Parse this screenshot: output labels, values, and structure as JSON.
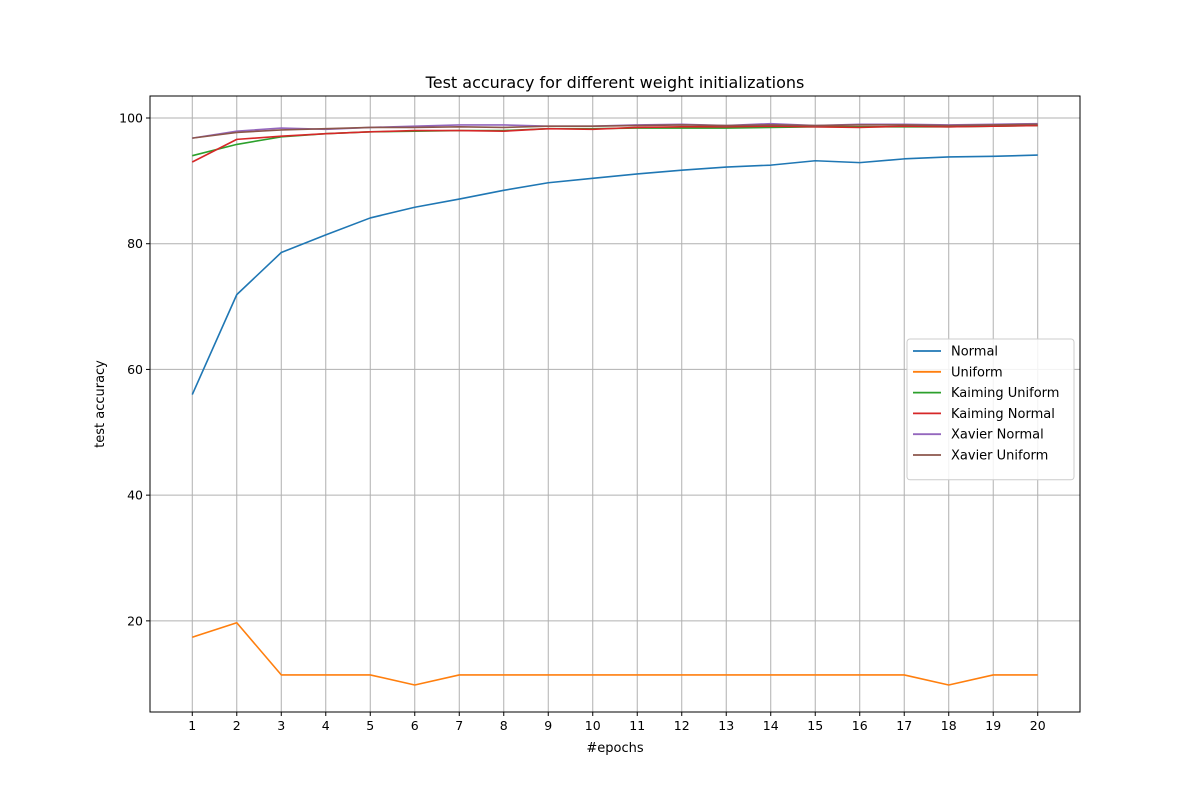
{
  "chart_data": {
    "type": "line",
    "title": "Test accuracy for different weight initializations",
    "xlabel": "#epochs",
    "ylabel": "test accuracy",
    "x": [
      1,
      2,
      3,
      4,
      5,
      6,
      7,
      8,
      9,
      10,
      11,
      12,
      13,
      14,
      15,
      16,
      17,
      18,
      19,
      20
    ],
    "xlim": [
      0.05,
      20.95
    ],
    "ylim": [
      5.5,
      103.5
    ],
    "xticks": [
      1,
      2,
      3,
      4,
      5,
      6,
      7,
      8,
      9,
      10,
      11,
      12,
      13,
      14,
      15,
      16,
      17,
      18,
      19,
      20
    ],
    "yticks": [
      20,
      40,
      60,
      80,
      100
    ],
    "grid": true,
    "legend_position": "center-right",
    "series": [
      {
        "name": "Normal",
        "color": "#1f77b4",
        "values": [
          56.0,
          71.9,
          78.6,
          81.4,
          84.1,
          85.8,
          87.1,
          88.5,
          89.7,
          90.4,
          91.1,
          91.7,
          92.2,
          92.5,
          93.2,
          92.9,
          93.5,
          93.8,
          93.9,
          94.1
        ]
      },
      {
        "name": "Uniform",
        "color": "#ff7f0e",
        "values": [
          17.4,
          19.7,
          11.4,
          11.4,
          11.4,
          9.8,
          11.4,
          11.4,
          11.4,
          11.4,
          11.4,
          11.4,
          11.4,
          11.4,
          11.4,
          11.4,
          11.4,
          9.8,
          11.4,
          11.4
        ]
      },
      {
        "name": "Kaiming Uniform",
        "color": "#2ca02c",
        "values": [
          94.0,
          95.8,
          97.0,
          97.5,
          97.8,
          97.9,
          98.0,
          98.0,
          98.3,
          98.3,
          98.4,
          98.4,
          98.4,
          98.5,
          98.6,
          98.6,
          98.6,
          98.6,
          98.7,
          98.8
        ]
      },
      {
        "name": "Kaiming Normal",
        "color": "#d62728",
        "values": [
          93.0,
          96.6,
          97.1,
          97.5,
          97.8,
          98.0,
          98.0,
          97.9,
          98.3,
          98.2,
          98.5,
          98.6,
          98.6,
          98.7,
          98.6,
          98.5,
          98.7,
          98.6,
          98.7,
          98.8
        ]
      },
      {
        "name": "Xavier Normal",
        "color": "#9467bd",
        "values": [
          96.8,
          97.9,
          98.4,
          98.2,
          98.5,
          98.7,
          98.9,
          98.9,
          98.7,
          98.7,
          98.9,
          99.0,
          98.8,
          99.1,
          98.8,
          99.0,
          99.0,
          98.9,
          99.0,
          99.1
        ]
      },
      {
        "name": "Xavier Uniform",
        "color": "#8c564b",
        "values": [
          96.8,
          97.7,
          98.1,
          98.3,
          98.5,
          98.5,
          98.6,
          98.5,
          98.7,
          98.7,
          98.8,
          98.9,
          98.8,
          98.9,
          98.8,
          98.9,
          98.9,
          98.8,
          98.9,
          99.0
        ]
      }
    ]
  }
}
